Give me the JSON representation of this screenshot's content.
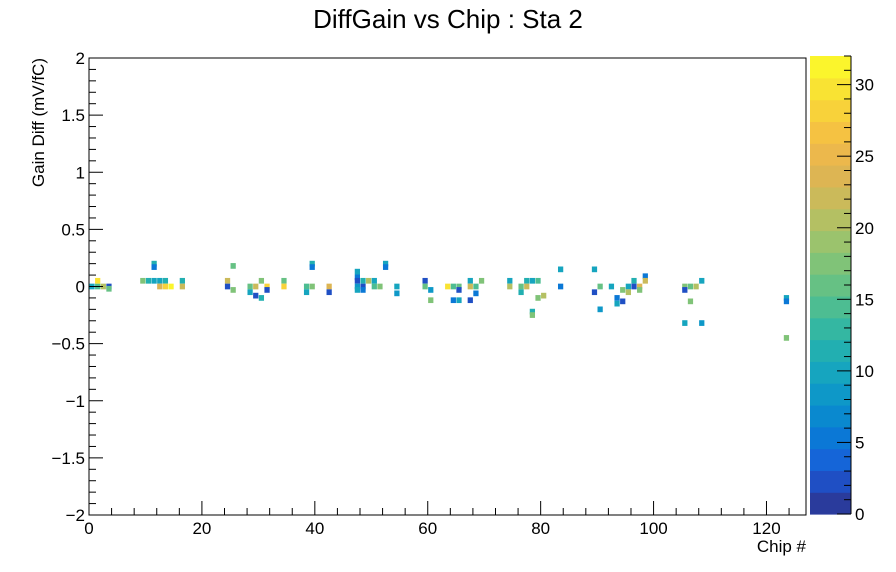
{
  "chart_data": {
    "type": "heatmap",
    "title": "DiffGain vs Chip : Sta 2",
    "xlabel": "Chip #",
    "ylabel": "Gain Diff (mV/fC)",
    "xlim": [
      0,
      127
    ],
    "ylim": [
      -2,
      2
    ],
    "x_ticks": [
      0,
      20,
      40,
      60,
      80,
      100,
      120
    ],
    "x_tick_labels": [
      "0",
      "20",
      "40",
      "60",
      "80",
      "100",
      "120"
    ],
    "y_ticks": [
      2,
      1.5,
      1,
      0.5,
      0,
      -0.5,
      -1,
      -1.5,
      -2
    ],
    "y_tick_labels": [
      "2",
      "1.5",
      "1",
      "0.5",
      "0",
      "−0.5",
      "−1",
      "−1.5",
      "−2"
    ],
    "colorbar": {
      "range": [
        0,
        32
      ],
      "ticks": [
        0,
        5,
        10,
        15,
        20,
        25,
        30
      ],
      "tick_labels": [
        "0",
        "5",
        "10",
        "15",
        "20",
        "25",
        "30"
      ],
      "palette": [
        "#2a3b9c",
        "#1f4fc4",
        "#1565d8",
        "#0b78d6",
        "#0a89cf",
        "#0e98c8",
        "#16a5bf",
        "#22afb1",
        "#34b7a2",
        "#4dbd92",
        "#66c184",
        "#80c378",
        "#9bc36d",
        "#b4c063",
        "#cbba5a",
        "#ddb553",
        "#ecb84c",
        "#f5c242",
        "#f8d23a",
        "#f9e333",
        "#fbf52c"
      ]
    },
    "cells": [
      {
        "x": 0,
        "y": 0.0,
        "v": 10
      },
      {
        "x": 1,
        "y": 0.0,
        "v": 14
      },
      {
        "x": 1,
        "y": 0.05,
        "v": 30
      },
      {
        "x": 2,
        "y": 0.0,
        "v": 20
      },
      {
        "x": 3,
        "y": 0.0,
        "v": 3
      },
      {
        "x": 3,
        "y": -0.02,
        "v": 16
      },
      {
        "x": 9,
        "y": 0.05,
        "v": 18
      },
      {
        "x": 10,
        "y": 0.05,
        "v": 12
      },
      {
        "x": 11,
        "y": 0.05,
        "v": 10
      },
      {
        "x": 11,
        "y": 0.2,
        "v": 12
      },
      {
        "x": 11,
        "y": 0.17,
        "v": 6
      },
      {
        "x": 12,
        "y": 0.05,
        "v": 10
      },
      {
        "x": 12,
        "y": 0.0,
        "v": 24
      },
      {
        "x": 13,
        "y": 0.05,
        "v": 12
      },
      {
        "x": 13,
        "y": 0.0,
        "v": 28
      },
      {
        "x": 14,
        "y": 0.0,
        "v": 32
      },
      {
        "x": 16,
        "y": 0.05,
        "v": 12
      },
      {
        "x": 16,
        "y": 0.0,
        "v": 22
      },
      {
        "x": 24,
        "y": 0.05,
        "v": 22
      },
      {
        "x": 24,
        "y": 0.0,
        "v": 3
      },
      {
        "x": 25,
        "y": 0.18,
        "v": 16
      },
      {
        "x": 25,
        "y": -0.03,
        "v": 18
      },
      {
        "x": 28,
        "y": 0.0,
        "v": 16
      },
      {
        "x": 28,
        "y": -0.05,
        "v": 10
      },
      {
        "x": 29,
        "y": 0.0,
        "v": 22
      },
      {
        "x": 29,
        "y": -0.08,
        "v": 3
      },
      {
        "x": 30,
        "y": 0.05,
        "v": 18
      },
      {
        "x": 30,
        "y": -0.1,
        "v": 12
      },
      {
        "x": 31,
        "y": 0.0,
        "v": 28
      },
      {
        "x": 31,
        "y": -0.03,
        "v": 3
      },
      {
        "x": 34,
        "y": 0.05,
        "v": 16
      },
      {
        "x": 34,
        "y": 0.0,
        "v": 28
      },
      {
        "x": 38,
        "y": 0.0,
        "v": 14
      },
      {
        "x": 38,
        "y": -0.05,
        "v": 10
      },
      {
        "x": 39,
        "y": 0.2,
        "v": 12
      },
      {
        "x": 39,
        "y": 0.17,
        "v": 6
      },
      {
        "x": 39,
        "y": 0.0,
        "v": 18
      },
      {
        "x": 42,
        "y": 0.0,
        "v": 24
      },
      {
        "x": 42,
        "y": -0.05,
        "v": 3
      },
      {
        "x": 47,
        "y": 0.13,
        "v": 10
      },
      {
        "x": 47,
        "y": 0.08,
        "v": 6
      },
      {
        "x": 47,
        "y": 0.05,
        "v": 3
      },
      {
        "x": 47,
        "y": 0.0,
        "v": 8
      },
      {
        "x": 47,
        "y": -0.03,
        "v": 10
      },
      {
        "x": 48,
        "y": 0.05,
        "v": 12
      },
      {
        "x": 48,
        "y": 0.0,
        "v": 3
      },
      {
        "x": 48,
        "y": -0.03,
        "v": 6
      },
      {
        "x": 49,
        "y": 0.05,
        "v": 20
      },
      {
        "x": 50,
        "y": 0.05,
        "v": 10
      },
      {
        "x": 50,
        "y": 0.0,
        "v": 14
      },
      {
        "x": 51,
        "y": 0.0,
        "v": 18
      },
      {
        "x": 52,
        "y": 0.2,
        "v": 10
      },
      {
        "x": 52,
        "y": 0.17,
        "v": 6
      },
      {
        "x": 54,
        "y": 0.0,
        "v": 10
      },
      {
        "x": 54,
        "y": -0.06,
        "v": 8
      },
      {
        "x": 59,
        "y": 0.05,
        "v": 3
      },
      {
        "x": 59,
        "y": 0.0,
        "v": 16
      },
      {
        "x": 60,
        "y": -0.03,
        "v": 8
      },
      {
        "x": 60,
        "y": -0.12,
        "v": 18
      },
      {
        "x": 63,
        "y": 0.0,
        "v": 30
      },
      {
        "x": 64,
        "y": 0.0,
        "v": 14
      },
      {
        "x": 64,
        "y": -0.12,
        "v": 6
      },
      {
        "x": 65,
        "y": 0.0,
        "v": 16
      },
      {
        "x": 65,
        "y": -0.12,
        "v": 10
      },
      {
        "x": 65,
        "y": -0.03,
        "v": 3
      },
      {
        "x": 67,
        "y": 0.05,
        "v": 10
      },
      {
        "x": 67,
        "y": 0.0,
        "v": 22
      },
      {
        "x": 67,
        "y": -0.12,
        "v": 3
      },
      {
        "x": 68,
        "y": 0.0,
        "v": 14
      },
      {
        "x": 68,
        "y": -0.06,
        "v": 6
      },
      {
        "x": 69,
        "y": 0.05,
        "v": 18
      },
      {
        "x": 74,
        "y": 0.05,
        "v": 10
      },
      {
        "x": 74,
        "y": 0.0,
        "v": 20
      },
      {
        "x": 76,
        "y": 0.0,
        "v": 16
      },
      {
        "x": 76,
        "y": -0.05,
        "v": 12
      },
      {
        "x": 77,
        "y": 0.05,
        "v": 12
      },
      {
        "x": 77,
        "y": 0.0,
        "v": 22
      },
      {
        "x": 78,
        "y": 0.05,
        "v": 10
      },
      {
        "x": 78,
        "y": -0.22,
        "v": 12
      },
      {
        "x": 78,
        "y": -0.25,
        "v": 18
      },
      {
        "x": 79,
        "y": 0.05,
        "v": 14
      },
      {
        "x": 79,
        "y": -0.1,
        "v": 18
      },
      {
        "x": 80,
        "y": -0.08,
        "v": 20
      },
      {
        "x": 83,
        "y": 0.15,
        "v": 10
      },
      {
        "x": 83,
        "y": 0.0,
        "v": 6
      },
      {
        "x": 89,
        "y": 0.15,
        "v": 10
      },
      {
        "x": 89,
        "y": -0.05,
        "v": 3
      },
      {
        "x": 90,
        "y": -0.2,
        "v": 8
      },
      {
        "x": 90,
        "y": 0.0,
        "v": 16
      },
      {
        "x": 92,
        "y": 0.0,
        "v": 10
      },
      {
        "x": 93,
        "y": -0.1,
        "v": 6
      },
      {
        "x": 93,
        "y": -0.15,
        "v": 10
      },
      {
        "x": 94,
        "y": -0.13,
        "v": 3
      },
      {
        "x": 94,
        "y": -0.03,
        "v": 18
      },
      {
        "x": 95,
        "y": 0.0,
        "v": 10
      },
      {
        "x": 95,
        "y": -0.05,
        "v": 20
      },
      {
        "x": 96,
        "y": 0.05,
        "v": 12
      },
      {
        "x": 96,
        "y": 0.0,
        "v": 3
      },
      {
        "x": 97,
        "y": 0.0,
        "v": 24
      },
      {
        "x": 97,
        "y": -0.03,
        "v": 18
      },
      {
        "x": 98,
        "y": 0.09,
        "v": 6
      },
      {
        "x": 98,
        "y": 0.05,
        "v": 22
      },
      {
        "x": 105,
        "y": 0.0,
        "v": 18
      },
      {
        "x": 105,
        "y": -0.03,
        "v": 3
      },
      {
        "x": 105,
        "y": -0.32,
        "v": 10
      },
      {
        "x": 106,
        "y": 0.0,
        "v": 16
      },
      {
        "x": 106,
        "y": -0.13,
        "v": 18
      },
      {
        "x": 107,
        "y": 0.0,
        "v": 20
      },
      {
        "x": 108,
        "y": 0.05,
        "v": 10
      },
      {
        "x": 108,
        "y": -0.32,
        "v": 8
      },
      {
        "x": 123,
        "y": -0.1,
        "v": 10
      },
      {
        "x": 123,
        "y": -0.13,
        "v": 6
      },
      {
        "x": 123,
        "y": -0.45,
        "v": 18
      }
    ]
  }
}
